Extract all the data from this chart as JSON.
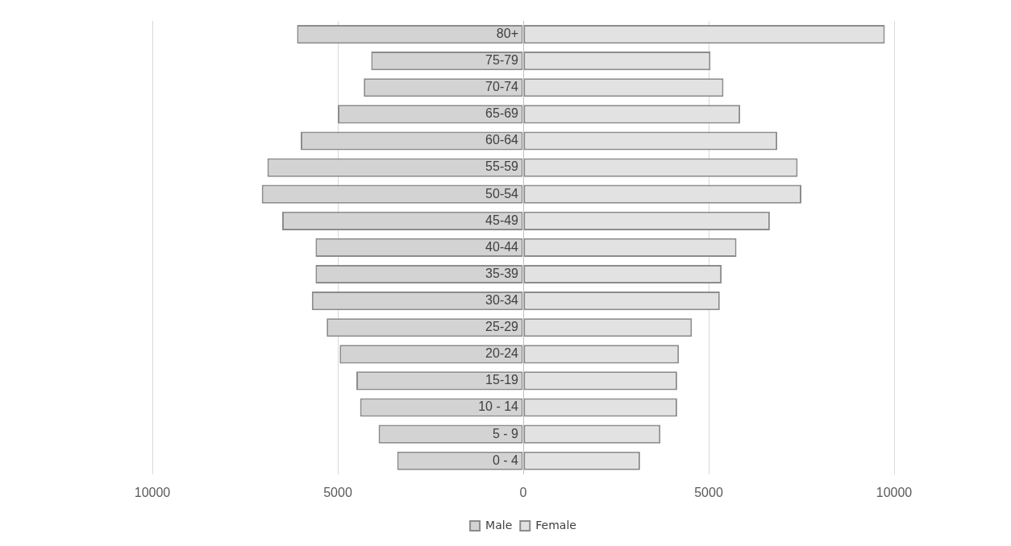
{
  "chart_data": {
    "type": "bar",
    "orientation": "horizontal",
    "stacked": true,
    "categories": [
      "80+",
      "75-79",
      "70-74",
      "65-69",
      "60-64",
      "55-59",
      "50-54",
      "45-49",
      "40-44",
      "35-39",
      "30-34",
      "25-29",
      "20-24",
      "15-19",
      "10 - 14",
      "5 - 9",
      "0 - 4"
    ],
    "series": [
      {
        "name": "Male",
        "color": "#d3d3d3",
        "values": [
          -6100,
          -4100,
          -4300,
          -5000,
          -6000,
          -6900,
          -7050,
          -6500,
          -5600,
          -5600,
          -5700,
          -5300,
          -4950,
          -4500,
          -4400,
          -3900,
          -3400
        ]
      },
      {
        "name": "Female",
        "color": "#e2e2e2",
        "values": [
          9750,
          5050,
          5400,
          5850,
          6850,
          7400,
          7500,
          6650,
          5750,
          5350,
          5300,
          4550,
          4200,
          4150,
          4150,
          3700,
          3150
        ]
      }
    ],
    "xlim": [
      -10000,
      10000
    ],
    "xticks": [
      {
        "value": -10000,
        "label": "10000"
      },
      {
        "value": -5000,
        "label": "5000"
      },
      0,
      5000,
      10000
    ],
    "grid": "x",
    "legend": "bottom"
  }
}
